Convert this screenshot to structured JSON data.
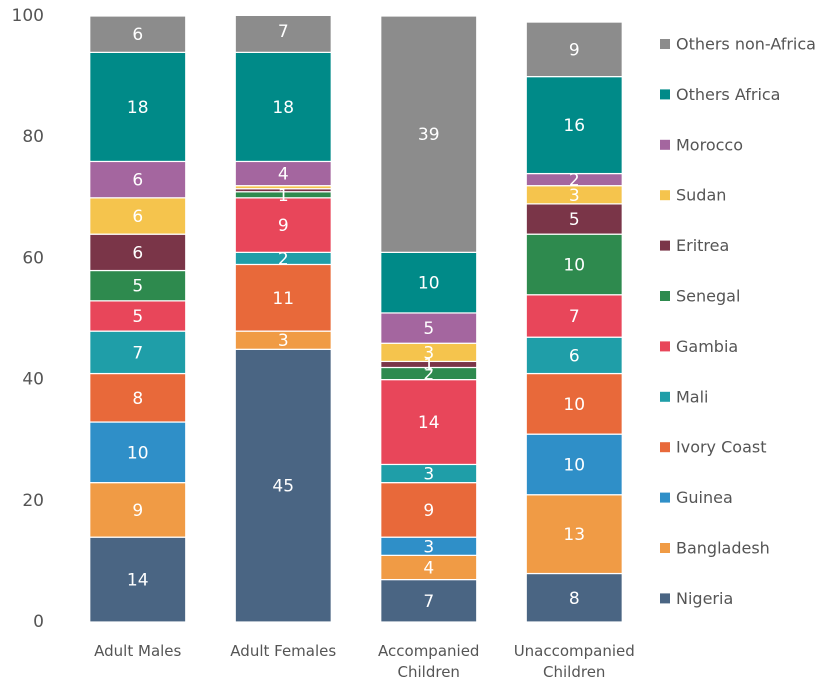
{
  "chart_data": {
    "type": "stacked_bar",
    "categories": [
      "Adult Males",
      "Adult Females",
      "Accompanied Children",
      "Unaccompanied Children"
    ],
    "ylim": [
      0,
      100
    ],
    "yticks": [
      0,
      20,
      40,
      60,
      80,
      100
    ],
    "grid": false,
    "legend": "right",
    "series": [
      {
        "name": "Nigeria",
        "color": "#4a6583",
        "values": [
          14,
          45,
          7,
          8
        ]
      },
      {
        "name": "Bangladesh",
        "color": "#f09b45",
        "values": [
          9,
          3,
          4,
          13
        ]
      },
      {
        "name": "Guinea",
        "color": "#2f8fc8",
        "values": [
          10,
          0,
          3,
          10
        ]
      },
      {
        "name": "Ivory Coast",
        "color": "#e8693a",
        "values": [
          8,
          11,
          9,
          10
        ]
      },
      {
        "name": "Mali",
        "color": "#1f9ea8",
        "values": [
          7,
          2,
          3,
          6
        ]
      },
      {
        "name": "Gambia",
        "color": "#e8465a",
        "values": [
          5,
          9,
          14,
          7
        ]
      },
      {
        "name": "Senegal",
        "color": "#2e8a4e",
        "values": [
          5,
          1,
          2,
          10
        ]
      },
      {
        "name": "Eritrea",
        "color": "#7a3548",
        "values": [
          6,
          0.5,
          1,
          5
        ]
      },
      {
        "name": "Sudan",
        "color": "#f5c44d",
        "values": [
          6,
          0.5,
          3,
          3
        ]
      },
      {
        "name": "Morocco",
        "color": "#a4669f",
        "values": [
          6,
          4,
          5,
          2
        ]
      },
      {
        "name": "Others Africa",
        "color": "#008a88",
        "values": [
          18,
          18,
          10,
          16
        ]
      },
      {
        "name": "Others non-Africa",
        "color": "#8c8c8c",
        "values": [
          6,
          7,
          39,
          9
        ]
      }
    ]
  }
}
